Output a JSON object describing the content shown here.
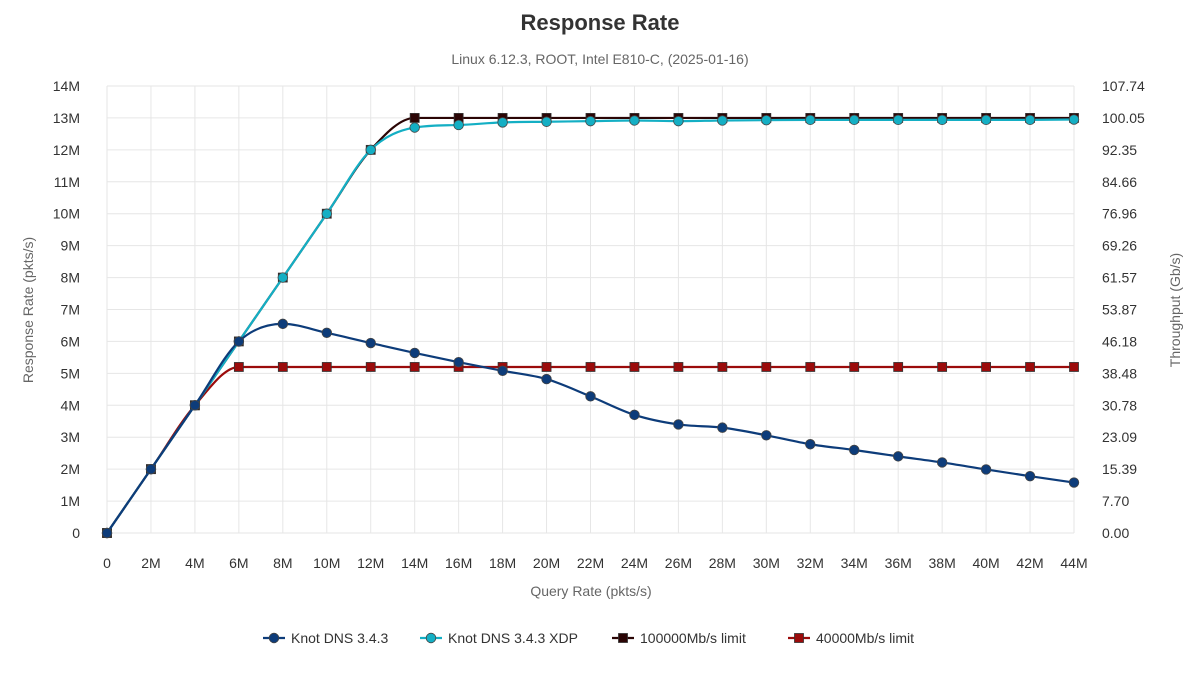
{
  "chart_data": {
    "type": "line",
    "title": "Response Rate",
    "subtitle": "Linux 6.12.3, ROOT, Intel E810-C, (2025-01-16)",
    "xlabel": "Query Rate (pkts/s)",
    "ylabel": "Response Rate (pkts/s)",
    "y2label": "Throughput (Gb/s)",
    "x": [
      0,
      2000000,
      4000000,
      6000000,
      8000000,
      10000000,
      12000000,
      14000000,
      16000000,
      18000000,
      20000000,
      22000000,
      24000000,
      26000000,
      28000000,
      30000000,
      32000000,
      34000000,
      36000000,
      38000000,
      40000000,
      42000000,
      44000000
    ],
    "x_tick_labels": [
      "0",
      "2M",
      "4M",
      "6M",
      "8M",
      "10M",
      "12M",
      "14M",
      "16M",
      "18M",
      "20M",
      "22M",
      "24M",
      "26M",
      "28M",
      "30M",
      "32M",
      "34M",
      "36M",
      "38M",
      "40M",
      "42M",
      "44M"
    ],
    "xlim": [
      0,
      44000000
    ],
    "ylim": [
      0,
      14000000
    ],
    "y_tick_labels": [
      "0",
      "1M",
      "2M",
      "3M",
      "4M",
      "5M",
      "6M",
      "7M",
      "8M",
      "9M",
      "10M",
      "11M",
      "12M",
      "13M",
      "14M"
    ],
    "y2_tick_labels": [
      "0.00",
      "7.70",
      "15.39",
      "23.09",
      "30.78",
      "38.48",
      "46.18",
      "53.87",
      "61.57",
      "69.26",
      "76.96",
      "84.66",
      "92.35",
      "100.05",
      "107.74"
    ],
    "grid": true,
    "legend_position": "bottom",
    "series": [
      {
        "name": "Knot DNS 3.4.3",
        "color": "#0d3c7a",
        "marker": "circle",
        "values": [
          0,
          2000000,
          4000000,
          6000000,
          6550000,
          6270000,
          5950000,
          5640000,
          5350000,
          5080000,
          4820000,
          4280000,
          3700000,
          3400000,
          3300000,
          3060000,
          2780000,
          2600000,
          2400000,
          2210000,
          1990000,
          1780000,
          1580000
        ]
      },
      {
        "name": "Knot DNS 3.4.3 XDP",
        "color": "#14afc4",
        "marker": "circle",
        "values": [
          0,
          2000000,
          4000000,
          6000000,
          8000000,
          10000000,
          12000000,
          12700000,
          12780000,
          12860000,
          12880000,
          12900000,
          12920000,
          12900000,
          12920000,
          12930000,
          12940000,
          12940000,
          12940000,
          12940000,
          12940000,
          12940000,
          12950000
        ]
      },
      {
        "name": "100000Mb/s limit",
        "color": "#2b0505",
        "marker": "square",
        "values": [
          0,
          2000000,
          4000000,
          6000000,
          8000000,
          10000000,
          12000000,
          13000000,
          13000000,
          13000000,
          13000000,
          13000000,
          13000000,
          13000000,
          13000000,
          13000000,
          13000000,
          13000000,
          13000000,
          13000000,
          13000000,
          13000000,
          13000000
        ]
      },
      {
        "name": "40000Mb/s limit",
        "color": "#9b0b0b",
        "marker": "square",
        "values": [
          0,
          2000000,
          4000000,
          5200000,
          5200000,
          5200000,
          5200000,
          5200000,
          5200000,
          5200000,
          5200000,
          5200000,
          5200000,
          5200000,
          5200000,
          5200000,
          5200000,
          5200000,
          5200000,
          5200000,
          5200000,
          5200000,
          5200000
        ]
      }
    ]
  }
}
